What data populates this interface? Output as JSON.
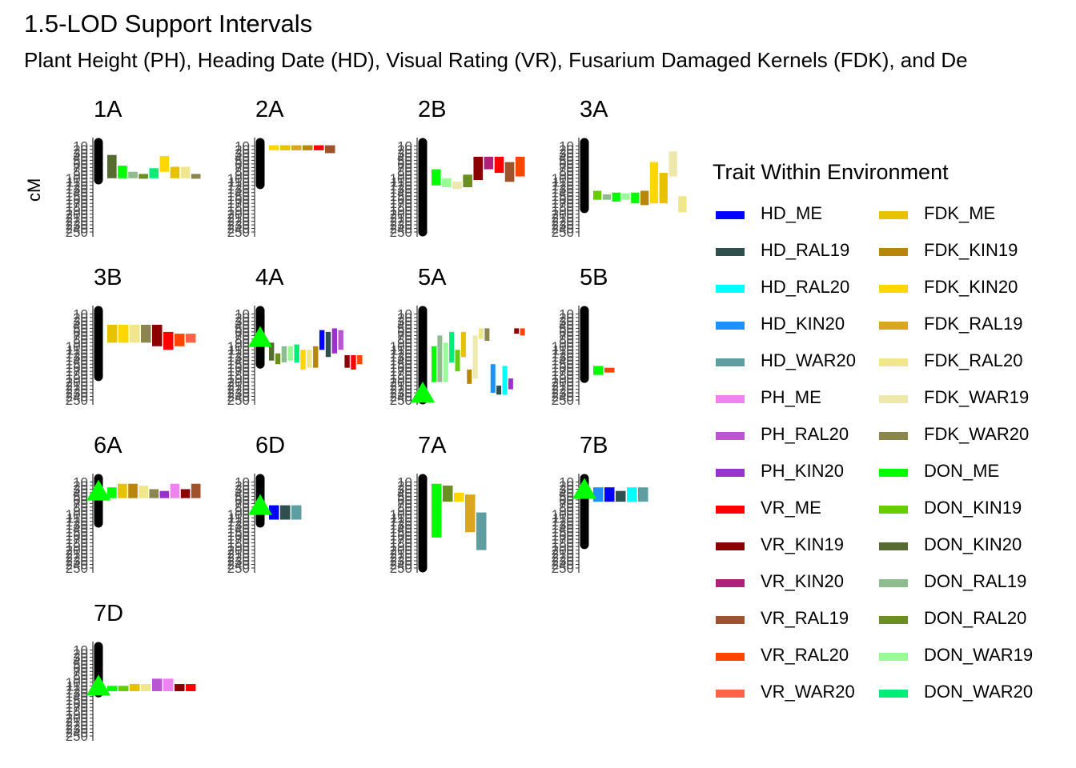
{
  "header": {
    "title": "1.5-LOD Support Intervals",
    "subtitle": "Plant Height (PH), Heading Date (HD), Visual Rating (VR), Fusarium Damaged Kernels (FDK), and De"
  },
  "legend": {
    "title": "Trait Within Environment",
    "items": [
      {
        "label": "HD_ME",
        "color": "#0000FF"
      },
      {
        "label": "HD_RAL19",
        "color": "#2F4F4F"
      },
      {
        "label": "HD_RAL20",
        "color": "#00FFFF"
      },
      {
        "label": "HD_KIN20",
        "color": "#1E90FF"
      },
      {
        "label": "HD_WAR20",
        "color": "#5F9EA0"
      },
      {
        "label": "PH_ME",
        "color": "#EE82EE"
      },
      {
        "label": "PH_RAL20",
        "color": "#BA55D3"
      },
      {
        "label": "PH_KIN20",
        "color": "#9932CC"
      },
      {
        "label": "VR_ME",
        "color": "#FF0000"
      },
      {
        "label": "VR_KIN19",
        "color": "#8B0000"
      },
      {
        "label": "VR_KIN20",
        "color": "#B0207A"
      },
      {
        "label": "VR_RAL19",
        "color": "#A0522D"
      },
      {
        "label": "VR_RAL20",
        "color": "#FF4500"
      },
      {
        "label": "VR_WAR20",
        "color": "#FF6347"
      },
      {
        "label": "FDK_ME",
        "color": "#E6C200"
      },
      {
        "label": "FDK_KIN19",
        "color": "#B8860B"
      },
      {
        "label": "FDK_KIN20",
        "color": "#FFD700"
      },
      {
        "label": "FDK_RAL19",
        "color": "#DAA520"
      },
      {
        "label": "FDK_RAL20",
        "color": "#F0E68C"
      },
      {
        "label": "FDK_WAR19",
        "color": "#EEE8AA"
      },
      {
        "label": "FDK_WAR20",
        "color": "#8B864E"
      },
      {
        "label": "DON_ME",
        "color": "#00FF00"
      },
      {
        "label": "DON_KIN19",
        "color": "#66CD00"
      },
      {
        "label": "DON_KIN20",
        "color": "#556B2F"
      },
      {
        "label": "DON_RAL19",
        "color": "#8FBC8F"
      },
      {
        "label": "DON_RAL20",
        "color": "#6B8E23"
      },
      {
        "label": "DON_WAR19",
        "color": "#98FB98"
      },
      {
        "label": "DON_WAR20",
        "color": "#00EE76"
      }
    ]
  },
  "chart_data": {
    "type": "linkage-map",
    "ylabel": "cM",
    "y_reversed": true,
    "ylim": [
      0,
      250
    ],
    "yticks": [
      10,
      20,
      30,
      40,
      50,
      60,
      70,
      80,
      90,
      100,
      110,
      120,
      130,
      140,
      150,
      160,
      170,
      180,
      190,
      200,
      210,
      220,
      230,
      240,
      250
    ],
    "marker_color": "#000000",
    "peak_color": "#00FF00",
    "panels": [
      {
        "name": "1A",
        "chromosome": [
          0,
          105
        ],
        "marker_clusters": [
          [
            0,
            25
          ],
          [
            30,
            50
          ],
          [
            55,
            70
          ],
          [
            75,
            105
          ]
        ],
        "peaks": [],
        "intervals": [
          {
            "trait": "DON_KIN20",
            "start": 35,
            "end": 100
          },
          {
            "trait": "DON_ME",
            "start": 65,
            "end": 100
          },
          {
            "trait": "DON_RAL19",
            "start": 82,
            "end": 100
          },
          {
            "trait": "DON_RAL20",
            "start": 88,
            "end": 100
          },
          {
            "trait": "DON_WAR20",
            "start": 72,
            "end": 100
          },
          {
            "trait": "FDK_KIN20",
            "start": 38,
            "end": 82
          },
          {
            "trait": "FDK_ME",
            "start": 68,
            "end": 100
          },
          {
            "trait": "FDK_RAL20",
            "start": 68,
            "end": 100
          },
          {
            "trait": "FDK_WAR20",
            "start": 88,
            "end": 100
          }
        ]
      },
      {
        "name": "2A",
        "chromosome": [
          0,
          118
        ],
        "marker_clusters": [
          [
            0,
            40
          ],
          [
            45,
            118
          ]
        ],
        "peaks": [],
        "intervals": [
          {
            "trait": "FDK_KIN20",
            "start": 8,
            "end": 22
          },
          {
            "trait": "FDK_ME",
            "start": 8,
            "end": 22
          },
          {
            "trait": "FDK_RAL19",
            "start": 8,
            "end": 22
          },
          {
            "trait": "FDK_KIN19",
            "start": 8,
            "end": 22
          },
          {
            "trait": "VR_ME",
            "start": 8,
            "end": 22
          },
          {
            "trait": "VR_RAL19",
            "start": 8,
            "end": 30
          }
        ]
      },
      {
        "name": "2B",
        "chromosome": [
          0,
          250
        ],
        "marker_clusters": [
          [
            0,
            250
          ]
        ],
        "peaks": [],
        "intervals": [
          {
            "trait": "DON_ME",
            "start": 75,
            "end": 120
          },
          {
            "trait": "DON_WAR19",
            "start": 100,
            "end": 125
          },
          {
            "trait": "FDK_WAR19",
            "start": 110,
            "end": 130
          },
          {
            "trait": "DON_RAL20",
            "start": 90,
            "end": 125
          },
          {
            "trait": "VR_KIN19",
            "start": 40,
            "end": 105
          },
          {
            "trait": "VR_KIN20",
            "start": 40,
            "end": 75
          },
          {
            "trait": "VR_ME",
            "start": 40,
            "end": 85
          },
          {
            "trait": "VR_RAL19",
            "start": 55,
            "end": 110
          },
          {
            "trait": "VR_RAL20",
            "start": 40,
            "end": 95
          }
        ]
      },
      {
        "name": "3A",
        "chromosome": [
          0,
          185
        ],
        "marker_clusters": [
          [
            0,
            185
          ]
        ],
        "peaks": [],
        "intervals": [
          {
            "trait": "DON_KIN19",
            "start": 135,
            "end": 160
          },
          {
            "trait": "DON_RAL19",
            "start": 145,
            "end": 160
          },
          {
            "trait": "DON_ME",
            "start": 140,
            "end": 165
          },
          {
            "trait": "DON_WAR19",
            "start": 142,
            "end": 160
          },
          {
            "trait": "DON_ME",
            "start": 140,
            "end": 170
          },
          {
            "trait": "FDK_KIN19",
            "start": 135,
            "end": 175
          },
          {
            "trait": "FDK_KIN20",
            "start": 55,
            "end": 170
          },
          {
            "trait": "FDK_ME",
            "start": 85,
            "end": 170
          },
          {
            "trait": "FDK_WAR19",
            "start": 25,
            "end": 95
          },
          {
            "trait": "FDK_RAL20",
            "start": 150,
            "end": 195
          }
        ]
      },
      {
        "name": "3B",
        "chromosome": [
          0,
          185
        ],
        "marker_clusters": [
          [
            0,
            170
          ],
          [
            175,
            185
          ]
        ],
        "peaks": [],
        "intervals": [
          {
            "trait": "FDK_ME",
            "start": 40,
            "end": 90
          },
          {
            "trait": "FDK_KIN20",
            "start": 40,
            "end": 90
          },
          {
            "trait": "FDK_RAL20",
            "start": 40,
            "end": 90
          },
          {
            "trait": "FDK_WAR20",
            "start": 40,
            "end": 90
          },
          {
            "trait": "VR_KIN19",
            "start": 40,
            "end": 100
          },
          {
            "trait": "VR_ME",
            "start": 60,
            "end": 110
          },
          {
            "trait": "VR_RAL20",
            "start": 65,
            "end": 100
          },
          {
            "trait": "VR_WAR20",
            "start": 65,
            "end": 90
          }
        ]
      },
      {
        "name": "4A",
        "chromosome": [
          0,
          150
        ],
        "marker_clusters": [
          [
            0,
            150
          ]
        ],
        "peaks": [
          75
        ],
        "intervals": [
          {
            "trait": "DON_KIN20",
            "start": 90,
            "end": 140
          },
          {
            "trait": "DON_RAL20",
            "start": 120,
            "end": 150
          },
          {
            "trait": "DON_RAL19",
            "start": 100,
            "end": 145
          },
          {
            "trait": "DON_WAR19",
            "start": 100,
            "end": 140
          },
          {
            "trait": "DON_WAR20",
            "start": 95,
            "end": 145
          },
          {
            "trait": "FDK_KIN20",
            "start": 110,
            "end": 165
          },
          {
            "trait": "FDK_RAL20",
            "start": 110,
            "end": 160
          },
          {
            "trait": "FDK_KIN19",
            "start": 100,
            "end": 160
          },
          {
            "trait": "HD_ME",
            "start": 55,
            "end": 110
          },
          {
            "trait": "HD_RAL19",
            "start": 60,
            "end": 130
          },
          {
            "trait": "PH_KIN20",
            "start": 50,
            "end": 120
          },
          {
            "trait": "PH_RAL20",
            "start": 55,
            "end": 110
          },
          {
            "trait": "VR_KIN19",
            "start": 125,
            "end": 160
          },
          {
            "trait": "VR_ME",
            "start": 125,
            "end": 165
          },
          {
            "trait": "VR_RAL20",
            "start": 125,
            "end": 150
          }
        ]
      },
      {
        "name": "5A",
        "chromosome": [
          0,
          250
        ],
        "marker_clusters": [
          [
            0,
            250
          ]
        ],
        "peaks": [
          230
        ],
        "intervals": [
          {
            "trait": "DON_ME",
            "start": 100,
            "end": 200
          },
          {
            "trait": "DON_RAL19",
            "start": 70,
            "end": 200
          },
          {
            "trait": "DON_WAR19",
            "start": 90,
            "end": 200
          },
          {
            "trait": "DON_WAR20",
            "start": 60,
            "end": 145
          },
          {
            "trait": "DON_KIN19",
            "start": 110,
            "end": 170
          },
          {
            "trait": "FDK_ME",
            "start": 60,
            "end": 130
          },
          {
            "trait": "FDK_KIN19",
            "start": 165,
            "end": 205
          },
          {
            "trait": "FDK_WAR19",
            "start": 70,
            "end": 190
          },
          {
            "trait": "FDK_RAL20",
            "start": 50,
            "end": 80
          },
          {
            "trait": "FDK_WAR20",
            "start": 50,
            "end": 85
          },
          {
            "trait": "HD_KIN20",
            "start": 150,
            "end": 230
          },
          {
            "trait": "HD_RAL19",
            "start": 210,
            "end": 235
          },
          {
            "trait": "HD_RAL20",
            "start": 155,
            "end": 235
          },
          {
            "trait": "PH_KIN20",
            "start": 190,
            "end": 220
          },
          {
            "trait": "VR_KIN19",
            "start": 50,
            "end": 65
          },
          {
            "trait": "VR_RAL20",
            "start": 50,
            "end": 70
          }
        ]
      },
      {
        "name": "5B",
        "chromosome": [
          0,
          190
        ],
        "marker_clusters": [
          [
            0,
            190
          ]
        ],
        "peaks": [],
        "intervals": [
          {
            "trait": "DON_ME",
            "start": 155,
            "end": 180
          },
          {
            "trait": "VR_RAL20",
            "start": 160,
            "end": 172
          }
        ]
      },
      {
        "name": "6A",
        "chromosome": [
          0,
          125
        ],
        "marker_clusters": [
          [
            0,
            125
          ]
        ],
        "peaks": [
          35
        ],
        "intervals": [
          {
            "trait": "DON_ME",
            "start": 25,
            "end": 55
          },
          {
            "trait": "FDK_ME",
            "start": 15,
            "end": 55
          },
          {
            "trait": "FDK_KIN19",
            "start": 15,
            "end": 55
          },
          {
            "trait": "FDK_RAL20",
            "start": 20,
            "end": 55
          },
          {
            "trait": "FDK_WAR20",
            "start": 30,
            "end": 55
          },
          {
            "trait": "PH_KIN20",
            "start": 35,
            "end": 55
          },
          {
            "trait": "PH_ME",
            "start": 15,
            "end": 55
          },
          {
            "trait": "VR_KIN19",
            "start": 30,
            "end": 55
          },
          {
            "trait": "VR_RAL19",
            "start": 15,
            "end": 55
          }
        ]
      },
      {
        "name": "6D",
        "chromosome": [
          0,
          125
        ],
        "marker_clusters": [
          [
            0,
            20
          ],
          [
            25,
            50
          ],
          [
            55,
            70
          ],
          [
            75,
            125
          ]
        ],
        "peaks": [
          75
        ],
        "intervals": [
          {
            "trait": "HD_ME",
            "start": 75,
            "end": 115
          },
          {
            "trait": "HD_RAL19",
            "start": 75,
            "end": 115
          },
          {
            "trait": "HD_WAR20",
            "start": 75,
            "end": 115
          }
        ]
      },
      {
        "name": "7A",
        "chromosome": [
          0,
          250
        ],
        "marker_clusters": [
          [
            0,
            250
          ]
        ],
        "peaks": [],
        "intervals": [
          {
            "trait": "DON_ME",
            "start": 15,
            "end": 165
          },
          {
            "trait": "DON_RAL20",
            "start": 20,
            "end": 65
          },
          {
            "trait": "FDK_KIN20",
            "start": 40,
            "end": 65
          },
          {
            "trait": "FDK_RAL19",
            "start": 45,
            "end": 150
          },
          {
            "trait": "HD_WAR20",
            "start": 95,
            "end": 200
          }
        ]
      },
      {
        "name": "7B",
        "chromosome": [
          0,
          185
        ],
        "marker_clusters": [
          [
            0,
            185
          ]
        ],
        "peaks": [
          30
        ],
        "intervals": [
          {
            "trait": "HD_KIN20",
            "start": 25,
            "end": 65
          },
          {
            "trait": "HD_ME",
            "start": 25,
            "end": 65
          },
          {
            "trait": "HD_RAL19",
            "start": 35,
            "end": 65
          },
          {
            "trait": "HD_RAL20",
            "start": 25,
            "end": 65
          },
          {
            "trait": "HD_WAR20",
            "start": 25,
            "end": 65
          }
        ]
      },
      {
        "name": "7D",
        "chromosome": [
          0,
          130
        ],
        "marker_clusters": [
          [
            0,
            55
          ],
          [
            60,
            130
          ]
        ],
        "peaks": [
          110
        ],
        "intervals": [
          {
            "trait": "DON_ME",
            "start": 110,
            "end": 125
          },
          {
            "trait": "DON_KIN19",
            "start": 110,
            "end": 125
          },
          {
            "trait": "FDK_ME",
            "start": 105,
            "end": 125
          },
          {
            "trait": "FDK_RAL20",
            "start": 105,
            "end": 125
          },
          {
            "trait": "PH_RAL20",
            "start": 90,
            "end": 125
          },
          {
            "trait": "PH_ME",
            "start": 90,
            "end": 125
          },
          {
            "trait": "VR_KIN19",
            "start": 105,
            "end": 125
          },
          {
            "trait": "VR_ME",
            "start": 105,
            "end": 125
          }
        ]
      }
    ]
  }
}
